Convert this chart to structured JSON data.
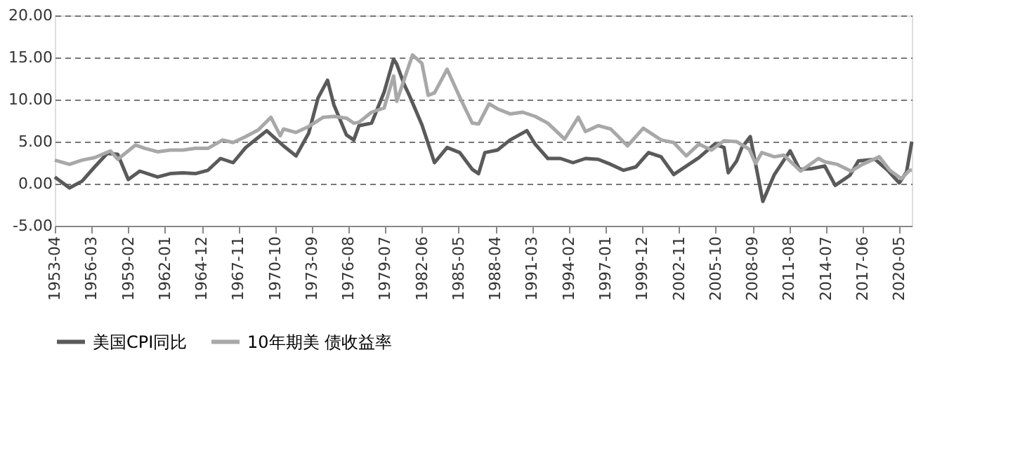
{
  "chart_data": {
    "type": "line",
    "ylim": [
      -5,
      20
    ],
    "yticks": [
      {
        "value": -5,
        "label": "-5.00"
      },
      {
        "value": 0,
        "label": "0.00"
      },
      {
        "value": 5,
        "label": "5.00"
      },
      {
        "value": 10,
        "label": "10.00"
      },
      {
        "value": 15,
        "label": "15.00"
      },
      {
        "value": 20,
        "label": "20.00"
      }
    ],
    "xlim": [
      "1953-04",
      "2021-05"
    ],
    "xticks": [
      "1953-04",
      "1956-03",
      "1959-02",
      "1962-01",
      "1964-12",
      "1967-11",
      "1970-10",
      "1973-09",
      "1976-08",
      "1979-07",
      "1982-06",
      "1985-05",
      "1988-04",
      "1991-03",
      "1994-02",
      "1997-01",
      "1999-12",
      "2002-11",
      "2005-10",
      "2008-09",
      "2011-08",
      "2014-07",
      "2017-06",
      "2020-05"
    ],
    "grid": "y",
    "line_style": "solid",
    "marker": "none",
    "legend": "bottom",
    "series": [
      {
        "name": "美国CPI同比",
        "color": "#5a5a5a",
        "x": [
          "1953-04",
          "1954-06",
          "1955-06",
          "1956-06",
          "1957-06",
          "1958-04",
          "1959-02",
          "1960-01",
          "1961-06",
          "1962-06",
          "1963-06",
          "1964-06",
          "1965-06",
          "1966-06",
          "1967-06",
          "1968-06",
          "1969-06",
          "1970-02",
          "1971-06",
          "1972-06",
          "1973-06",
          "1974-03",
          "1974-12",
          "1975-06",
          "1976-06",
          "1977-01",
          "1977-06",
          "1978-06",
          "1979-06",
          "1980-03",
          "1980-06",
          "1981-01",
          "1981-06",
          "1982-06",
          "1983-06",
          "1984-06",
          "1985-06",
          "1986-06",
          "1986-12",
          "1987-06",
          "1988-06",
          "1989-06",
          "1990-10",
          "1991-06",
          "1992-06",
          "1993-06",
          "1994-06",
          "1995-06",
          "1996-06",
          "1997-06",
          "1998-06",
          "1999-06",
          "2000-06",
          "2001-06",
          "2002-06",
          "2003-06",
          "2004-06",
          "2005-09",
          "2006-06",
          "2006-10",
          "2007-06",
          "2007-11",
          "2008-07",
          "2009-07",
          "2010-06",
          "2011-09",
          "2012-06",
          "2013-06",
          "2014-06",
          "2015-04",
          "2016-06",
          "2017-02",
          "2018-06",
          "2019-06",
          "2020-05",
          "2020-12",
          "2021-05"
        ],
        "values": [
          0.8,
          -0.5,
          0.3,
          2.0,
          3.6,
          3.5,
          0.5,
          1.5,
          0.8,
          1.2,
          1.3,
          1.2,
          1.6,
          3.0,
          2.5,
          4.3,
          5.5,
          6.3,
          4.5,
          3.3,
          6.0,
          10.2,
          12.3,
          9.4,
          5.8,
          5.2,
          6.9,
          7.2,
          10.9,
          14.8,
          14.2,
          11.8,
          10.5,
          7.0,
          2.5,
          4.3,
          3.7,
          1.7,
          1.2,
          3.7,
          4.0,
          5.2,
          6.3,
          4.7,
          3.0,
          3.0,
          2.5,
          3.0,
          2.9,
          2.3,
          1.6,
          2.0,
          3.7,
          3.2,
          1.1,
          2.1,
          3.1,
          4.7,
          4.3,
          1.3,
          2.7,
          4.3,
          5.6,
          -2.1,
          1.1,
          3.9,
          1.7,
          1.8,
          2.1,
          -0.2,
          1.0,
          2.7,
          2.9,
          1.6,
          0.1,
          1.4,
          5.0
        ]
      },
      {
        "name": "10年期美 债收益率",
        "color": "#a8a8a8",
        "x": [
          "1953-04",
          "1954-06",
          "1955-06",
          "1956-06",
          "1957-09",
          "1958-04",
          "1959-09",
          "1960-06",
          "1961-06",
          "1962-06",
          "1963-06",
          "1964-06",
          "1965-06",
          "1966-08",
          "1967-06",
          "1968-06",
          "1969-06",
          "1970-06",
          "1971-03",
          "1971-06",
          "1972-06",
          "1973-06",
          "1974-08",
          "1975-06",
          "1976-06",
          "1977-01",
          "1977-06",
          "1978-06",
          "1979-06",
          "1980-03",
          "1980-06",
          "1981-09",
          "1982-06",
          "1982-12",
          "1983-06",
          "1984-06",
          "1985-06",
          "1986-06",
          "1986-12",
          "1987-10",
          "1988-06",
          "1989-06",
          "1990-06",
          "1991-06",
          "1992-06",
          "1993-10",
          "1994-11",
          "1995-06",
          "1996-06",
          "1997-06",
          "1998-10",
          "2000-01",
          "2001-06",
          "2002-06",
          "2003-06",
          "2004-06",
          "2005-06",
          "2006-06",
          "2007-06",
          "2008-06",
          "2008-12",
          "2009-06",
          "2010-06",
          "2011-03",
          "2012-07",
          "2013-12",
          "2014-06",
          "2015-06",
          "2016-07",
          "2017-06",
          "2018-10",
          "2019-08",
          "2020-07",
          "2021-03",
          "2021-05"
        ],
        "values": [
          2.8,
          2.3,
          2.8,
          3.1,
          3.9,
          2.9,
          4.6,
          4.2,
          3.8,
          4.0,
          4.0,
          4.2,
          4.2,
          5.2,
          4.9,
          5.6,
          6.4,
          7.9,
          5.7,
          6.5,
          6.1,
          6.8,
          7.9,
          8.0,
          7.8,
          7.2,
          7.3,
          8.5,
          9.0,
          12.8,
          9.8,
          15.3,
          14.3,
          10.5,
          10.8,
          13.6,
          10.3,
          7.2,
          7.1,
          9.5,
          8.9,
          8.3,
          8.5,
          8.0,
          7.2,
          5.3,
          7.9,
          6.2,
          6.9,
          6.5,
          4.5,
          6.6,
          5.2,
          4.9,
          3.3,
          4.7,
          4.0,
          5.1,
          5.0,
          4.1,
          2.4,
          3.7,
          3.2,
          3.4,
          1.5,
          3.0,
          2.6,
          2.3,
          1.5,
          2.3,
          3.2,
          1.6,
          0.6,
          1.6,
          1.6
        ]
      }
    ]
  }
}
